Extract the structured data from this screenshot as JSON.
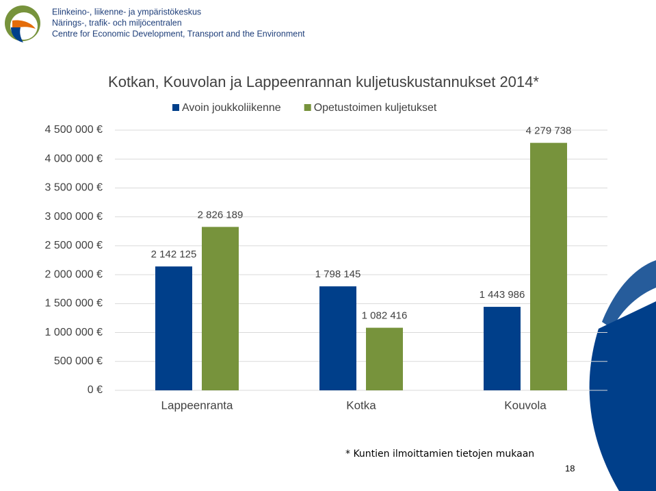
{
  "header": {
    "lines": [
      "Elinkeino-, liikenne- ja ympäristökeskus",
      "Närings-, trafik- och miljöcentralen",
      "Centre for Economic Development, Transport and the Environment"
    ]
  },
  "chart_data": {
    "type": "bar",
    "title": "Kotkan, Kouvolan ja Lappeenrannan kuljetuskustannukset 2014*",
    "categories": [
      "Lappeenranta",
      "Kotka",
      "Kouvola"
    ],
    "series": [
      {
        "name": "Avoin joukkoliikenne",
        "color": "#003f8a",
        "values": [
          2142125,
          1798145,
          1443986
        ],
        "value_labels": [
          "2 142 125",
          "1 798 145",
          "1 443 986"
        ]
      },
      {
        "name": "Opetustoimen kuljetukset",
        "color": "#77933c",
        "values": [
          2826189,
          1082416,
          4279738
        ],
        "value_labels": [
          "2 826 189",
          "1 082 416",
          "4 279 738"
        ]
      }
    ],
    "ylim": [
      0,
      4500000
    ],
    "yticks": [
      {
        "value": 0,
        "label": "0 €"
      },
      {
        "value": 500000,
        "label": "500 000 €"
      },
      {
        "value": 1000000,
        "label": "1 000 000 €"
      },
      {
        "value": 1500000,
        "label": "1 500 000 €"
      },
      {
        "value": 2000000,
        "label": "2 000 000 €"
      },
      {
        "value": 2500000,
        "label": "2 500 000 €"
      },
      {
        "value": 3000000,
        "label": "3 000 000 €"
      },
      {
        "value": 3500000,
        "label": "3 500 000 €"
      },
      {
        "value": 4000000,
        "label": "4 000 000 €"
      },
      {
        "value": 4500000,
        "label": "4 500 000 €"
      }
    ],
    "grid": true,
    "legend": "top"
  },
  "footnote": "* Kuntien ilmoittamien tietojen mukaan",
  "page_number": "18"
}
